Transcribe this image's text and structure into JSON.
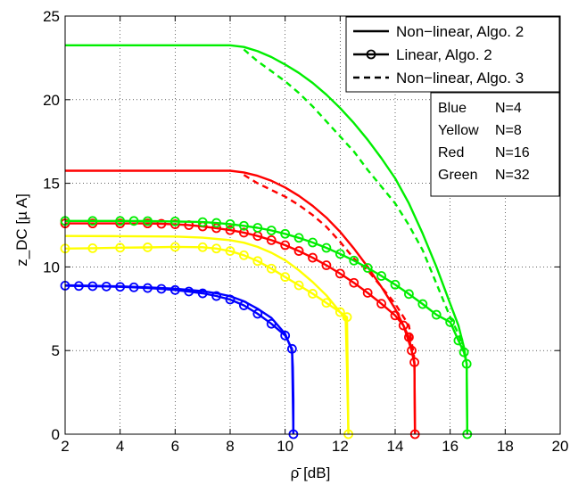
{
  "chart_data": {
    "type": "line",
    "xlabel": "ρ̄ [dB]",
    "ylabel": "z_DC [µ A]",
    "xlim": [
      2,
      20
    ],
    "ylim": [
      0,
      25
    ],
    "xticks": [
      2,
      4,
      6,
      8,
      10,
      12,
      14,
      16,
      18,
      20
    ],
    "yticks": [
      0,
      5,
      10,
      15,
      20,
      25
    ],
    "grid": true,
    "legend_position": "top-right",
    "style_legend": [
      {
        "label": "Non−linear, Algo. 2",
        "style": "solid"
      },
      {
        "label": "Linear, Algo. 2",
        "style": "solid-circle"
      },
      {
        "label": "Non−linear, Algo. 3",
        "style": "dashed"
      }
    ],
    "n_legend": [
      {
        "color_name": "Blue",
        "n": "N=4"
      },
      {
        "color_name": "Yellow",
        "n": "N=8"
      },
      {
        "color_name": "Red",
        "n": "N=16"
      },
      {
        "color_name": "Green",
        "n": "N=32"
      }
    ],
    "colors": {
      "blue": "#0000ff",
      "yellow": "#ffff00",
      "red": "#ff0000",
      "green": "#00ee00"
    },
    "series": [
      {
        "color": "blue",
        "style": "solid",
        "x": [
          2,
          3,
          4,
          5,
          6,
          7,
          7.5,
          8,
          8.5,
          9,
          9.5,
          10,
          10.15,
          10.25,
          10.28,
          10.3,
          10.3
        ],
        "y": [
          8.9,
          8.87,
          8.84,
          8.78,
          8.7,
          8.55,
          8.43,
          8.25,
          7.95,
          7.5,
          6.95,
          6.0,
          5.4,
          5.0,
          4.0,
          2.0,
          0
        ]
      },
      {
        "color": "blue",
        "style": "solid-circle",
        "x": [
          2,
          2.5,
          3,
          3.5,
          4,
          4.5,
          5,
          5.5,
          6,
          6.5,
          7,
          7.5,
          8,
          8.5,
          9,
          9.5,
          10,
          10.25,
          10.3
        ],
        "y": [
          8.88,
          8.86,
          8.85,
          8.83,
          8.81,
          8.78,
          8.74,
          8.69,
          8.62,
          8.53,
          8.42,
          8.26,
          8.05,
          7.7,
          7.2,
          6.6,
          5.9,
          5.1,
          0
        ]
      },
      {
        "color": "yellow",
        "style": "solid",
        "x": [
          2,
          4,
          6,
          7,
          8,
          8.5,
          9,
          9.5,
          10,
          10.5,
          11,
          11.5,
          12,
          12.2,
          12.25,
          12.3
        ],
        "y": [
          11.85,
          11.84,
          11.82,
          11.75,
          11.6,
          11.45,
          11.2,
          10.85,
          10.4,
          9.8,
          9.1,
          8.3,
          7.3,
          6.9,
          4.0,
          0
        ]
      },
      {
        "color": "yellow",
        "style": "solid-circle",
        "x": [
          2,
          3,
          4,
          5,
          6,
          7,
          7.5,
          8,
          8.5,
          9,
          9.5,
          10,
          10.5,
          11,
          11.5,
          12,
          12.25,
          12.3
        ],
        "y": [
          11.1,
          11.12,
          11.15,
          11.17,
          11.2,
          11.18,
          11.1,
          10.95,
          10.7,
          10.35,
          9.9,
          9.4,
          8.9,
          8.4,
          7.85,
          7.3,
          7.0,
          0
        ]
      },
      {
        "color": "red",
        "style": "solid",
        "x": [
          2,
          4,
          6,
          8,
          8.5,
          9,
          9.5,
          10,
          10.5,
          11,
          11.5,
          12,
          12.5,
          13,
          13.5,
          14,
          14.3,
          14.6,
          14.7,
          14.72
        ],
        "y": [
          15.75,
          15.75,
          15.75,
          15.75,
          15.65,
          15.45,
          15.15,
          14.75,
          14.25,
          13.65,
          12.95,
          12.1,
          11.1,
          10.0,
          8.8,
          7.5,
          6.5,
          5.0,
          4.2,
          0
        ]
      },
      {
        "color": "red",
        "style": "dashed",
        "x": [
          8.5,
          9,
          9.5,
          10,
          10.5,
          11,
          11.5,
          12,
          12.5,
          13,
          13.5,
          14,
          14.5,
          14.7
        ],
        "y": [
          15.5,
          15.0,
          14.6,
          14.2,
          13.7,
          13.1,
          12.4,
          11.5,
          10.5,
          9.8,
          8.8,
          7.8,
          6.5,
          4.5
        ]
      },
      {
        "color": "red",
        "style": "solid-circle",
        "x": [
          2,
          3,
          4,
          5,
          5.5,
          6,
          6.5,
          7,
          7.5,
          8,
          8.5,
          9,
          9.5,
          10,
          10.5,
          11,
          11.5,
          12,
          12.5,
          13,
          13.5,
          14,
          14.3,
          14.5,
          14.6,
          14.7,
          14.72
        ],
        "y": [
          12.6,
          12.6,
          12.6,
          12.6,
          12.58,
          12.55,
          12.5,
          12.42,
          12.32,
          12.2,
          12.05,
          11.85,
          11.6,
          11.3,
          10.95,
          10.55,
          10.1,
          9.6,
          9.05,
          8.45,
          7.8,
          7.1,
          6.5,
          5.8,
          5.0,
          4.3,
          0
        ]
      },
      {
        "color": "green",
        "style": "solid",
        "x": [
          2,
          4,
          6,
          8,
          8.5,
          9,
          9.5,
          10,
          10.5,
          11,
          11.5,
          12,
          12.5,
          13,
          13.5,
          14,
          14.5,
          15,
          15.5,
          16,
          16.3,
          16.5,
          16.6,
          16.62
        ],
        "y": [
          23.25,
          23.25,
          23.25,
          23.25,
          23.15,
          22.9,
          22.55,
          22.1,
          21.6,
          21.0,
          20.3,
          19.5,
          18.6,
          17.6,
          16.5,
          15.3,
          13.8,
          12.0,
          10.0,
          7.8,
          6.5,
          5.2,
          4.2,
          0
        ]
      },
      {
        "color": "green",
        "style": "dashed",
        "x": [
          8.5,
          9,
          9.5,
          10,
          10.5,
          11,
          11.5,
          12,
          12.5,
          13,
          13.5,
          14,
          14.5,
          15,
          15.5,
          16,
          16.3,
          16.5
        ],
        "y": [
          23.0,
          22.3,
          21.7,
          21.1,
          20.4,
          19.6,
          18.7,
          17.8,
          16.9,
          15.8,
          14.8,
          13.8,
          12.5,
          11.0,
          9.0,
          7.0,
          6.0,
          5.0
        ]
      },
      {
        "color": "green",
        "style": "solid-circle",
        "x": [
          2,
          3,
          4,
          4.5,
          5,
          6,
          7,
          7.5,
          8,
          8.5,
          9,
          9.5,
          10,
          10.5,
          11,
          11.5,
          12,
          12.5,
          13,
          13.5,
          14,
          14.5,
          15,
          15.5,
          16,
          16.3,
          16.5,
          16.6,
          16.62
        ],
        "y": [
          12.75,
          12.75,
          12.75,
          12.75,
          12.74,
          12.72,
          12.68,
          12.63,
          12.56,
          12.46,
          12.34,
          12.18,
          11.98,
          11.74,
          11.46,
          11.14,
          10.78,
          10.38,
          9.94,
          9.46,
          8.94,
          8.38,
          7.78,
          7.14,
          6.7,
          5.6,
          4.9,
          4.2,
          0
        ]
      }
    ]
  }
}
